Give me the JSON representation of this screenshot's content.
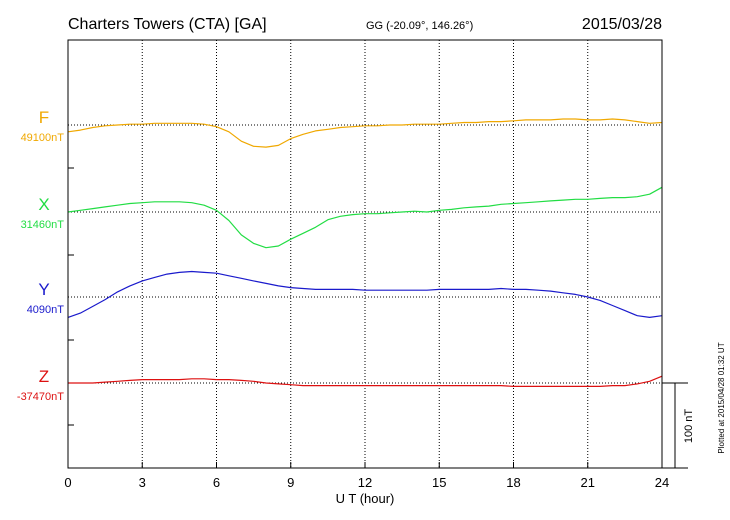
{
  "header": {
    "station": "Charters Towers (CTA)  [GA]",
    "coords": "GG (-20.09°, 146.26°)",
    "date": "2015/03/28"
  },
  "plotted_note": "Plotted at 2015/04/28 01:32 UT",
  "colors": {
    "F": "#f0a800",
    "X": "#22dd44",
    "Y": "#1a1acc",
    "Z": "#dd1111"
  },
  "chart_data": {
    "type": "line",
    "title": "Charters Towers (CTA)  [GA]",
    "xlabel": "U T (hour)",
    "ylabel": "",
    "xlim": [
      0,
      24
    ],
    "x_ticks": [
      0,
      3,
      6,
      9,
      12,
      15,
      18,
      21,
      24
    ],
    "grid": true,
    "scale_bar": {
      "value": 100,
      "label": "100 nT"
    },
    "x": [
      0,
      0.5,
      1,
      1.5,
      2,
      2.5,
      3,
      3.5,
      4,
      4.5,
      5,
      5.5,
      6,
      6.5,
      7,
      7.5,
      8,
      8.5,
      9,
      9.5,
      10,
      10.5,
      11,
      11.5,
      12,
      12.5,
      13,
      13.5,
      14,
      14.5,
      15,
      15.5,
      16,
      16.5,
      17,
      17.5,
      18,
      18.5,
      19,
      19.5,
      20,
      20.5,
      21,
      21.5,
      22,
      22.5,
      23,
      23.5,
      24
    ],
    "series": [
      {
        "name": "F",
        "baseline_label": "49100nT",
        "baseline": 49100,
        "values": [
          49092,
          49094,
          49097,
          49099,
          49100,
          49101,
          49101,
          49102,
          49102,
          49102,
          49102,
          49101,
          49098,
          49092,
          49081,
          49075,
          49074,
          49076,
          49084,
          49089,
          49093,
          49095,
          49097,
          49098,
          49099,
          49099,
          49100,
          49100,
          49101,
          49101,
          49101,
          49102,
          49103,
          49103,
          49104,
          49104,
          49105,
          49106,
          49106,
          49106,
          49107,
          49107,
          49106,
          49106,
          49107,
          49106,
          49104,
          49102,
          49103
        ]
      },
      {
        "name": "X",
        "baseline_label": "31460nT",
        "baseline": 31460,
        "values": [
          31460,
          31462,
          31464,
          31466,
          31468,
          31470,
          31471,
          31472,
          31472,
          31472,
          31471,
          31468,
          31462,
          31450,
          31433,
          31423,
          31418,
          31420,
          31428,
          31435,
          31442,
          31451,
          31455,
          31457,
          31458,
          31458,
          31459,
          31460,
          31461,
          31460,
          31462,
          31463,
          31465,
          31466,
          31467,
          31469,
          31470,
          31471,
          31472,
          31473,
          31474,
          31475,
          31475,
          31476,
          31477,
          31477,
          31478,
          31481,
          31489
        ]
      },
      {
        "name": "Y",
        "baseline_label": "4090nT",
        "baseline": 4090,
        "values": [
          4066,
          4071,
          4079,
          4087,
          4096,
          4103,
          4109,
          4113,
          4117,
          4119,
          4120,
          4119,
          4118,
          4115,
          4112,
          4109,
          4106,
          4103,
          4101,
          4100,
          4099,
          4099,
          4099,
          4099,
          4098,
          4098,
          4098,
          4098,
          4098,
          4098,
          4099,
          4099,
          4099,
          4099,
          4099,
          4100,
          4099,
          4099,
          4098,
          4097,
          4095,
          4093,
          4090,
          4086,
          4080,
          4074,
          4068,
          4066,
          4068
        ]
      },
      {
        "name": "Z",
        "baseline_label": "-37470nT",
        "baseline": -37470,
        "values": [
          -37470,
          -37470,
          -37470,
          -37469,
          -37468,
          -37467,
          -37466,
          -37466,
          -37466,
          -37466,
          -37465,
          -37465,
          -37466,
          -37466,
          -37467,
          -37468,
          -37470,
          -37471,
          -37472,
          -37473,
          -37473,
          -37473,
          -37473,
          -37473,
          -37473,
          -37473,
          -37473,
          -37473,
          -37473,
          -37473,
          -37473,
          -37473,
          -37473,
          -37473,
          -37473,
          -37473,
          -37474,
          -37474,
          -37474,
          -37474,
          -37474,
          -37474,
          -37474,
          -37474,
          -37473,
          -37473,
          -37471,
          -37468,
          -37462
        ]
      }
    ]
  }
}
